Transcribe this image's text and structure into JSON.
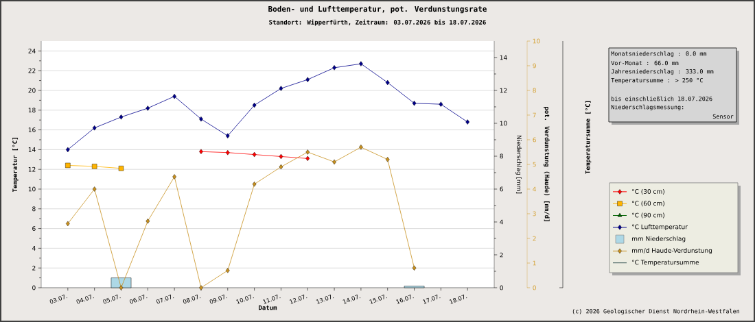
{
  "chart_data": {
    "type": "line",
    "title": "Boden- und Lufttemperatur, pot. Verdunstungsrate",
    "subtitle": "Standort: Wipperfürth, Zeitraum: 03.07.2026 bis 18.07.2026",
    "xlabel": "Datum",
    "ylabel": "Temperatur [°C]",
    "y2label": "Niederschlag [mm]",
    "y3label": "pot. Verdunstung (Haude) [mm/d]",
    "categories": [
      "03.07.",
      "04.07.",
      "05.07.",
      "06.07.",
      "07.07.",
      "08.07.",
      "09.07.",
      "10.07.",
      "11.07.",
      "12.07.",
      "13.07.",
      "14.07.",
      "15.07.",
      "16.07.",
      "17.07.",
      "18.07."
    ],
    "ylim": [
      0,
      25
    ],
    "yticks": [
      0,
      {
        "value": 1,
        "label": null
      },
      2,
      {
        "value": 3,
        "label": null
      },
      4,
      {
        "value": 5,
        "label": null
      },
      6,
      {
        "value": 7,
        "label": null
      },
      8,
      {
        "value": 9,
        "label": null
      },
      10,
      {
        "value": 11,
        "label": null
      },
      12,
      {
        "value": 13,
        "label": null
      },
      14,
      {
        "value": 15,
        "label": null
      },
      16,
      {
        "value": 17,
        "label": null
      },
      18,
      {
        "value": 19,
        "label": null
      },
      20,
      {
        "value": 21,
        "label": null
      },
      22,
      {
        "value": 23,
        "label": null
      },
      24
    ],
    "y2lim": [
      0,
      15
    ],
    "y2ticks": [
      0,
      {
        "value": 1,
        "label": null
      },
      2,
      {
        "value": 3,
        "label": null
      },
      4,
      {
        "value": 5,
        "label": null
      },
      6,
      {
        "value": 7,
        "label": null
      },
      8,
      {
        "value": 9,
        "label": null
      },
      10,
      {
        "value": 11,
        "label": null
      },
      12,
      {
        "value": 13,
        "label": null
      },
      14
    ],
    "y3lim": [
      0,
      10
    ],
    "y3ticks": [
      0,
      1,
      2,
      3,
      4,
      5,
      6,
      7,
      8,
      9,
      10
    ],
    "grid": "y",
    "legend": "right",
    "annotations": [
      "Monatsniederschlag : 0.0 mm",
      "Vor-Monat : 66.0 mm",
      "Jahresniederschlag : 333.0 mm",
      "Temperatursumme : > 250 °C",
      "bis einschließlich 18.07.2026",
      "Niederschlagsmessung:",
      "Sensor",
      "(c) 2026 Geologischer Dienst Nordrhein-Westfalen",
      "Temperatursumme [°C]"
    ],
    "series": [
      {
        "name": "°C (30 cm)",
        "color": "#ff0000",
        "marker": "diamond",
        "values": [
          null,
          null,
          null,
          null,
          null,
          13.8,
          13.7,
          13.5,
          13.3,
          13.1,
          null,
          null,
          null,
          null,
          null,
          null
        ]
      },
      {
        "name": "°C (60 cm)",
        "color": "#ffb400",
        "marker": "square",
        "values": [
          12.4,
          12.3,
          12.1,
          null,
          null,
          null,
          null,
          null,
          null,
          null,
          null,
          null,
          null,
          null,
          null,
          null
        ]
      },
      {
        "name": "°C (90 cm)",
        "color": "#006400",
        "marker": "triangle",
        "values": [
          null,
          null,
          null,
          null,
          null,
          null,
          null,
          null,
          null,
          null,
          null,
          null,
          null,
          null,
          null,
          null
        ]
      },
      {
        "name": "°C Lufttemperatur",
        "color": "#00008b",
        "marker": "diamond",
        "values": [
          14.0,
          16.2,
          17.3,
          18.2,
          19.4,
          17.1,
          15.4,
          18.5,
          20.2,
          21.1,
          22.3,
          22.7,
          20.8,
          18.7,
          18.6,
          16.8
        ]
      },
      {
        "name": "mm Niederschlag",
        "type": "bar",
        "axis": "y2",
        "color": "#add8e6",
        "values": [
          null,
          null,
          0.6,
          null,
          null,
          null,
          null,
          null,
          null,
          null,
          null,
          null,
          null,
          0.1,
          null,
          null
        ]
      },
      {
        "name": "mm/d Haude-Verdunstung",
        "axis": "y3",
        "color": "#c8901e",
        "marker": "diamond",
        "values": [
          2.6,
          4.0,
          0,
          2.7,
          4.5,
          0,
          0.7,
          4.2,
          4.9,
          5.5,
          5.1,
          5.7,
          5.2,
          0.8,
          null,
          null
        ]
      },
      {
        "name": "°C Temperatursumme",
        "color": "#2f4f4f",
        "marker": "none",
        "values": [
          null,
          null,
          null,
          null,
          null,
          null,
          null,
          null,
          null,
          null,
          null,
          null,
          null,
          null,
          null,
          null
        ]
      }
    ]
  }
}
